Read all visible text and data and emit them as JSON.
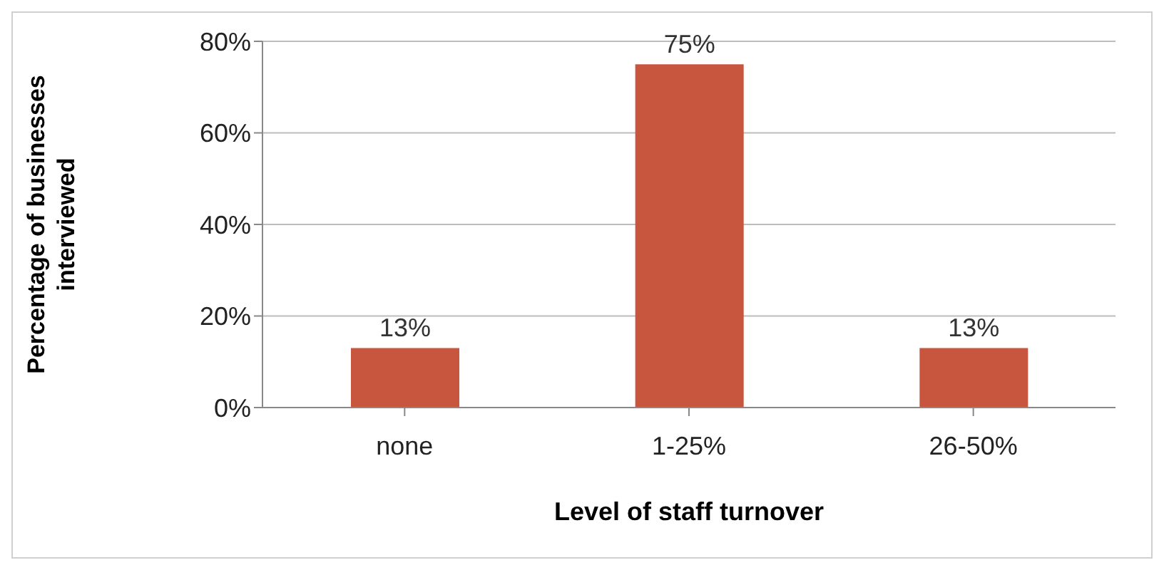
{
  "chart_data": {
    "type": "bar",
    "xlabel": "Level of staff turnover",
    "ylabel": "Percentage of businesses interviewed",
    "categories": [
      "none",
      "1-25%",
      "26-50%"
    ],
    "values": [
      13,
      75,
      13
    ],
    "value_labels": [
      "13%",
      "75%",
      "13%"
    ],
    "color": "#c8553d",
    "ylim": [
      0,
      80
    ],
    "yticks": [
      {
        "value": 0,
        "label": "0%"
      },
      {
        "value": 20,
        "label": "20%"
      },
      {
        "value": 40,
        "label": "40%"
      },
      {
        "value": 60,
        "label": "60%"
      },
      {
        "value": 80,
        "label": "80%"
      }
    ],
    "grid": "y",
    "legend": false
  }
}
